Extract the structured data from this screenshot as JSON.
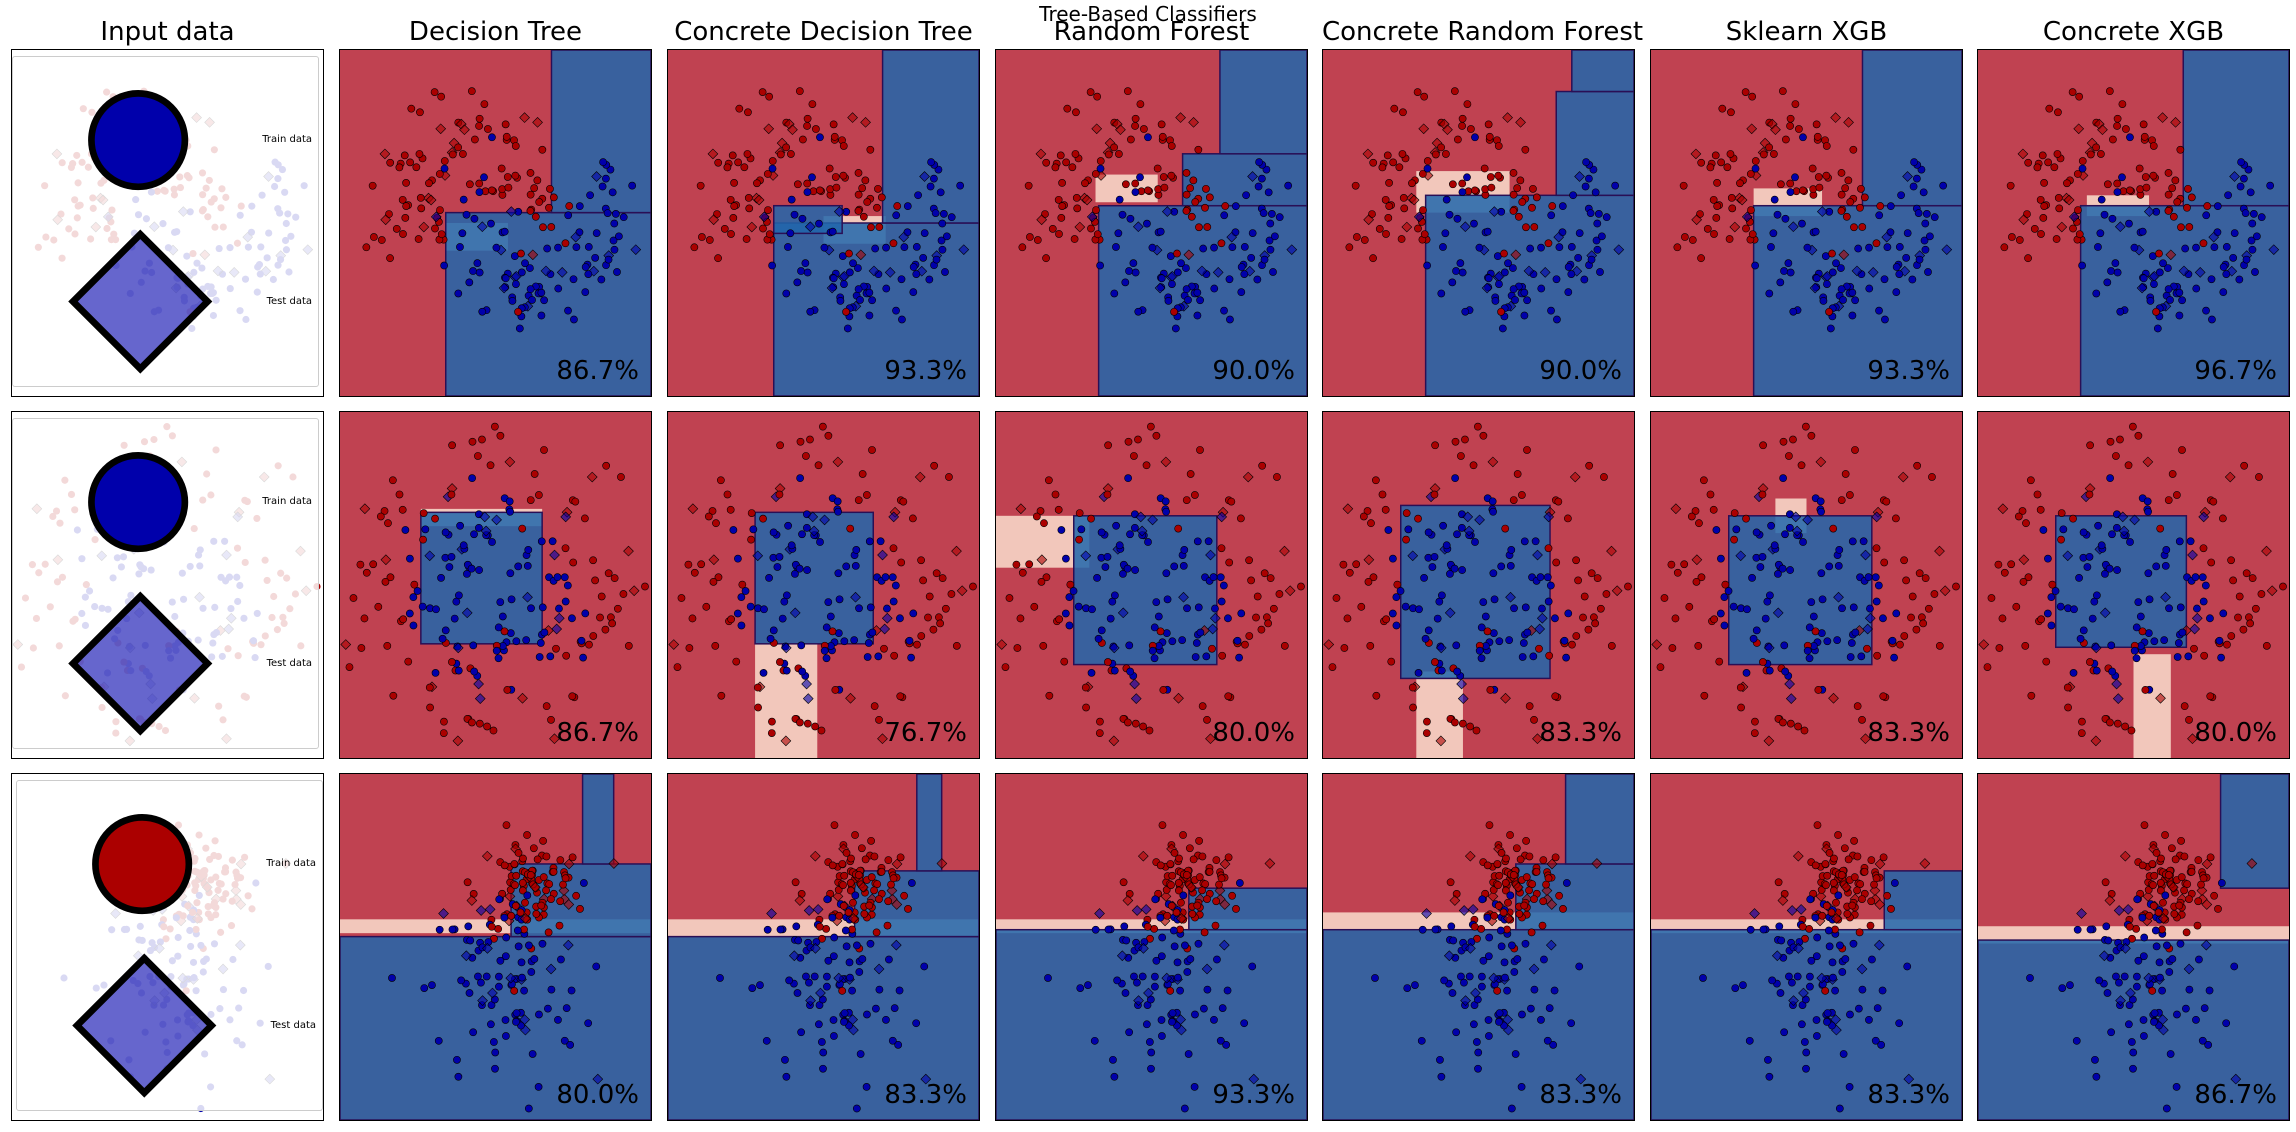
{
  "figure_title": "Tree-Based Classifiers",
  "columns": [
    "Input data",
    "Decision Tree",
    "Concrete Decision Tree",
    "Random Forest",
    "Concrete Random Forest",
    "Sklearn XGB",
    "Concrete XGB"
  ],
  "legend": {
    "train": "Train data",
    "test": "Test data"
  },
  "colors": {
    "class0": "#ab0000",
    "class1": "#0000ab",
    "region_red": "#b2182b",
    "region_blue": "#2166ac",
    "border": "#000000"
  },
  "chart_data": [
    {
      "type": "scatter",
      "dataset": "moons",
      "scores": [
        "86.7%",
        "93.3%",
        "90.0%",
        "90.0%",
        "93.3%",
        "96.7%"
      ],
      "xlim": [
        -2.0,
        2.6
      ],
      "ylim": [
        -1.6,
        2.0
      ],
      "legend_position": "upper right"
    },
    {
      "type": "scatter",
      "dataset": "circles",
      "scores": [
        "86.7%",
        "76.7%",
        "80.0%",
        "83.3%",
        "83.3%",
        "80.0%"
      ],
      "xlim": [
        -1.4,
        1.4
      ],
      "ylim": [
        -1.4,
        1.4
      ],
      "legend_position": "upper right"
    },
    {
      "type": "scatter",
      "dataset": "linearly separable",
      "scores": [
        "80.0%",
        "83.3%",
        "93.3%",
        "83.3%",
        "83.3%",
        "86.7%"
      ],
      "xlim": [
        -3.0,
        3.4
      ],
      "ylim": [
        -3.6,
        3.6
      ],
      "legend_position": "upper left"
    }
  ]
}
